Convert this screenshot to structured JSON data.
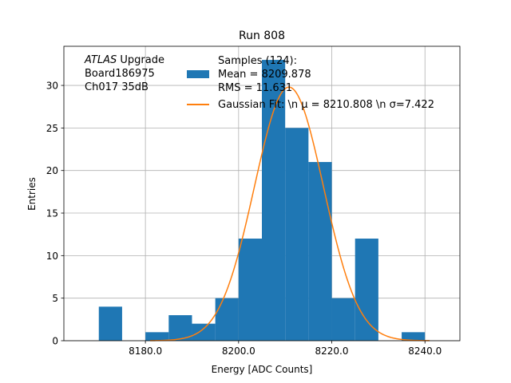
{
  "chart_data": {
    "type": "bar",
    "title": "Run 808",
    "xlabel": "Energy [ADC Counts]",
    "ylabel": "Entries",
    "xlim": [
      8162.5,
      8247.5
    ],
    "ylim": [
      0,
      34.6
    ],
    "grid": true,
    "xticks": [
      8180.0,
      8200.0,
      8220.0,
      8240.0
    ],
    "xtick_labels": [
      "8180.0",
      "8200.0",
      "8220.0",
      "8240.0"
    ],
    "yticks": [
      0,
      5,
      10,
      15,
      20,
      25,
      30
    ],
    "ytick_labels": [
      "0",
      "5",
      "10",
      "15",
      "20",
      "25",
      "30"
    ],
    "annotation": {
      "lines": [
        {
          "italic": "ATLAS",
          "text": " Upgrade"
        },
        {
          "italic": "",
          "text": " Board186975"
        },
        {
          "italic": "",
          "text": " Ch017 35dB"
        }
      ]
    },
    "legend": {
      "placement": "top-right",
      "entries": [
        {
          "kind": "patch",
          "color": "#1f77b4",
          "lines": [
            "Samples (124):",
            " Mean = 8209.878",
            " RMS = 11.631"
          ]
        },
        {
          "kind": "line",
          "color": "#ff7f0e",
          "lines": [
            "Gaussian Fit: \\n μ = 8210.808 \\n σ=7.422"
          ]
        }
      ]
    },
    "histogram": {
      "color": "#1f77b4",
      "bin_edges": [
        8170,
        8175,
        8180,
        8185,
        8190,
        8195,
        8200,
        8205,
        8210,
        8215,
        8220,
        8225,
        8230,
        8235,
        8240
      ],
      "counts": [
        4,
        0,
        1,
        3,
        2,
        5,
        12,
        33,
        25,
        21,
        5,
        12,
        0,
        1
      ]
    },
    "fit": {
      "type": "gaussian",
      "color": "#ff7f0e",
      "mu": 8210.808,
      "sigma": 7.422,
      "amplitude": 29.8
    }
  }
}
